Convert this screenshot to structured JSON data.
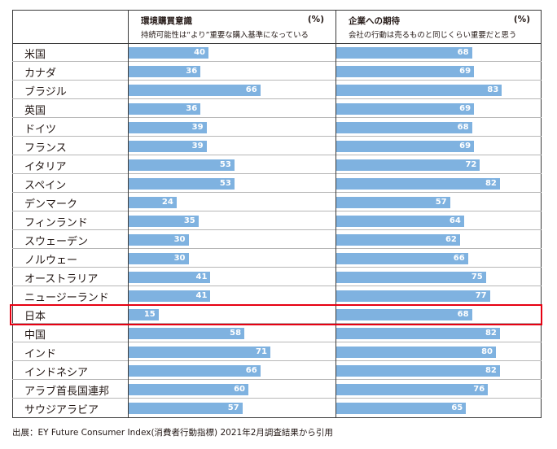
{
  "header": {
    "col1_title": "環境購買意識",
    "col1_unit": "(%)",
    "col1_subtitle": "持続可能性は“より”重要な購入基準になっている",
    "col2_title": "企業への期待",
    "col2_unit": "(%)",
    "col2_subtitle": "会社の行動は売るものと同じくらい重要だと思う"
  },
  "source": "出展：EY Future Consumer Index(消費者行動指標) 2021年2月調査結果から引用",
  "highlight_row": "日本",
  "colors": {
    "bar": "#7fb2e0",
    "highlight": "#e60012"
  },
  "chart_data": {
    "type": "bar",
    "orientation": "horizontal",
    "categories": [
      "米国",
      "カナダ",
      "ブラジル",
      "英国",
      "ドイツ",
      "フランス",
      "イタリア",
      "スペイン",
      "デンマーク",
      "フィンランド",
      "スウェーデン",
      "ノルウェー",
      "オーストラリア",
      "ニュージーランド",
      "日本",
      "中国",
      "インド",
      "インドネシア",
      "アラブ首長国連邦",
      "サウジアラビア"
    ],
    "series": [
      {
        "name": "環境購買意識",
        "values": [
          40,
          36,
          66,
          36,
          39,
          39,
          53,
          53,
          24,
          35,
          30,
          30,
          41,
          41,
          15,
          58,
          71,
          66,
          60,
          57
        ]
      },
      {
        "name": "企業への期待",
        "values": [
          68,
          69,
          83,
          69,
          68,
          69,
          72,
          82,
          57,
          64,
          62,
          66,
          75,
          77,
          68,
          82,
          80,
          82,
          76,
          65
        ]
      }
    ],
    "xlim": [
      0,
      100
    ],
    "grid": false,
    "data_labels": true
  }
}
